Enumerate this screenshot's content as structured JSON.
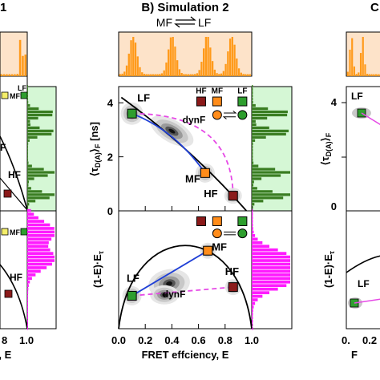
{
  "header": {
    "center_title": "B) Simulation 2",
    "center_scheme_left": "MF",
    "center_scheme_right": "LF",
    "left_cut": "1",
    "right_cut": "C"
  },
  "labels": {
    "lf": "LF",
    "mf": "MF",
    "hf": "HF",
    "dynf": "dynF",
    "mf_prime": "MF'",
    "f_cut": "F",
    "legend_hf": "HF",
    "legend_mf": "MF",
    "legend_lf": "LF"
  },
  "axes": {
    "xlabel": "FRET effciency, E",
    "top_ylabel_main": "⟨τ",
    "top_ylabel_sub": "D(A)",
    "top_ylabel_tail": "⟩",
    "top_ylabel_sub2": "F",
    "top_ylabel_unit": "[ns]",
    "bot_ylabel_main": "(1-E)·E",
    "bot_ylabel_sub": "τ",
    "left_ylabel_cut": "r, E",
    "left_xtick_cut1": "8",
    "left_xtick_cut2": "1.0",
    "right_bot_ylabel": "(1-E)·E",
    "right_bot_ylabel_sub": "τ",
    "right_top_ylabel_main": "⟨τ",
    "right_top_ylabel_sub": "D(A)",
    "right_top_ylabel_tail": "⟩",
    "right_top_ylabel_sub2": "F",
    "right_xtick_cut1": "0.",
    "right_xtick_cut2": "0.2"
  },
  "colors": {
    "hf": "#8b1a1a",
    "mf": "#ff8c1a",
    "lf": "#2e9e2e",
    "top_hist_bg": "#fde3c9",
    "top_hist": "#ff9a1a",
    "right_top_bg": "#d5f7d5",
    "right_top_hist": "#3a7d22",
    "right_bot_hist": "#ff1aff",
    "fit_line": "#1f3fd6",
    "dynf_dashed": "#e64ae6",
    "left_yellow": "#f4ee6a"
  },
  "chart_data": {
    "type": "scatter",
    "x_ticks": [
      "0.0",
      "0.2",
      "0.4",
      "0.6",
      "0.8",
      "1.0"
    ],
    "xlim": [
      0,
      1
    ],
    "top_panel": {
      "ylim": [
        0,
        4.6
      ],
      "y_ticks": [
        "0",
        "2",
        "4"
      ],
      "points": {
        "LF": [
          0.1,
          3.6
        ],
        "MF": [
          0.65,
          1.4
        ],
        "HF": [
          0.86,
          0.56
        ]
      },
      "dynf_center": [
        0.4,
        2.95
      ]
    },
    "bottom_panel": {
      "ylim": [
        0,
        0.34
      ],
      "y_ticks": [],
      "points": {
        "LF": [
          0.1,
          0.095
        ],
        "MF": [
          0.67,
          0.225
        ],
        "HF": [
          0.86,
          0.12
        ]
      },
      "dynf_center": [
        0.38,
        0.13
      ]
    },
    "top_hist_peaks": [
      0.1,
      0.4,
      0.67,
      0.86
    ],
    "right_hist_top_peaks": [
      3.6,
      2.9,
      1.4,
      0.56
    ],
    "right_hist_bottom_peak": 0.14
  }
}
